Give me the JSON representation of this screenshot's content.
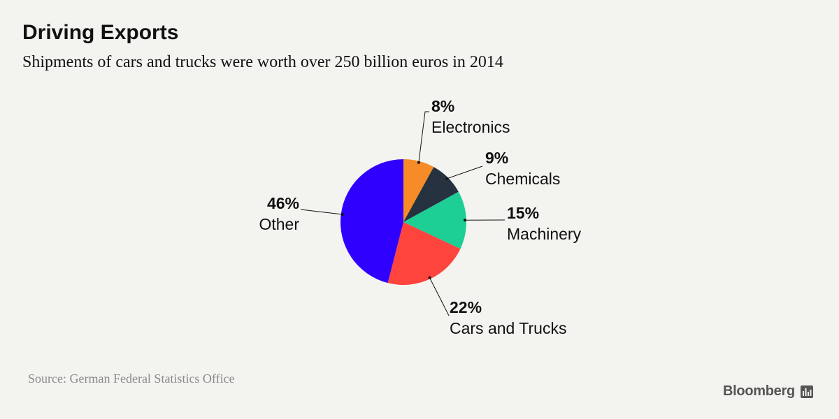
{
  "header": {
    "title": "Driving Exports",
    "subtitle": "Shipments of cars and trucks were worth over 250 billion euros in 2014"
  },
  "footer": {
    "source": "Source: German Federal Statistics Office",
    "brand": "Bloomberg",
    "brand_icon": "bloomberg-chart-icon"
  },
  "chart_data": {
    "type": "pie",
    "title": "Driving Exports",
    "subtitle": "Shipments of cars and trucks were worth over 250 billion euros in 2014",
    "legend": "none",
    "slices": [
      {
        "label": "Electronics",
        "value": 8,
        "pct_label": "8%",
        "color": "#f68b27"
      },
      {
        "label": "Chemicals",
        "value": 9,
        "pct_label": "9%",
        "color": "#26323f"
      },
      {
        "label": "Machinery",
        "value": 15,
        "pct_label": "15%",
        "color": "#1dcf95"
      },
      {
        "label": "Cars and Trucks",
        "value": 22,
        "pct_label": "22%",
        "color": "#ff433d"
      },
      {
        "label": "Other",
        "value": 46,
        "pct_label": "46%",
        "color": "#3000ff"
      }
    ]
  }
}
